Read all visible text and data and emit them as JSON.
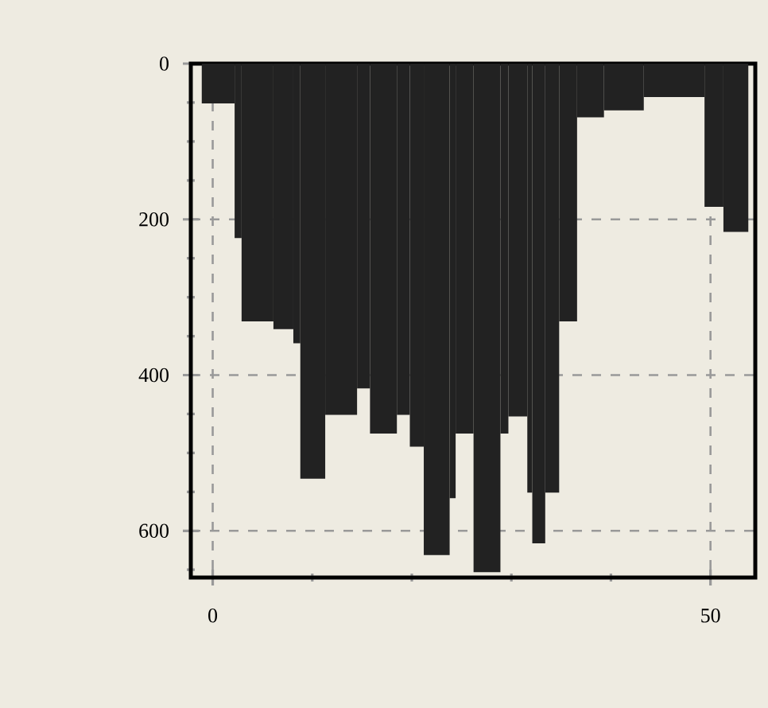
{
  "chart_data": {
    "type": "histogram",
    "bins": [
      -1.1,
      2.2,
      2.9,
      6.1,
      8.1,
      8.8,
      11.3,
      14.5,
      15.8,
      18.5,
      19.8,
      21.2,
      23.8,
      24.4,
      26.2,
      28.9,
      29.7,
      31.6,
      32.1,
      33.4,
      34.8,
      36.6,
      39.3,
      43.3,
      49.4,
      51.3,
      53.8
    ],
    "values": [
      51,
      224,
      331,
      341,
      359,
      533,
      451,
      417,
      475,
      451,
      492,
      631,
      558,
      475,
      653,
      475,
      453,
      551,
      616,
      551,
      331,
      69,
      60,
      43,
      184,
      216
    ],
    "color": "#222222",
    "xlim": [
      -2.2,
      54.5
    ],
    "ylim": [
      660,
      0
    ],
    "xticks": [
      0,
      {
        "value": 10,
        "label": null
      },
      {
        "value": 20,
        "label": null
      },
      {
        "value": 30,
        "label": null
      },
      {
        "value": 40,
        "label": null
      },
      50
    ],
    "yticks": [
      0,
      {
        "value": 50,
        "label": null
      },
      {
        "value": 100,
        "label": null
      },
      {
        "value": 150,
        "label": null
      },
      200,
      {
        "value": 250,
        "label": null
      },
      {
        "value": 300,
        "label": null
      },
      {
        "value": 350,
        "label": null
      },
      400,
      {
        "value": 450,
        "label": null
      },
      {
        "value": 500,
        "label": null
      },
      {
        "value": 550,
        "label": null
      },
      600,
      {
        "value": 650,
        "label": null
      }
    ],
    "grid": true
  }
}
